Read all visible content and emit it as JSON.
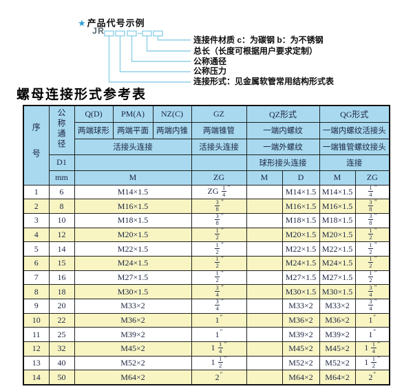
{
  "diagram": {
    "star": "★",
    "title": "产品代号示例",
    "code_prefix": "JR",
    "labels": [
      "连接件材质  c：为碳钢  b：为不锈钢",
      "总长（长度可根据用户要求定制）",
      "公称通径",
      "公称压力",
      "连接形式：见金属软管常用结构形式表"
    ]
  },
  "table": {
    "title": "螺母连接形式参考表",
    "header": {
      "seq": "序号",
      "dn": "公称通径",
      "groups": {
        "q": "Q(D)",
        "pm": "PM(A)",
        "nz": "NZ(C)",
        "gz": "GZ",
        "qz": "QZ形式",
        "qg": "QG形式"
      },
      "row2": {
        "q": "两端球形",
        "pm": "两端平面",
        "nz": "两端内锥",
        "gz": "两端锥管",
        "qz": "一端内螺纹",
        "qg": "一端内螺纹活接头"
      },
      "row3": {
        "qpmnz": "活接头连接",
        "gz": "活接头连接",
        "qz": "一端外螺纹",
        "qg": "一端锥管螺纹接头"
      },
      "row4": {
        "d1": "D1",
        "qz": "球形接头连接",
        "qg": "连接"
      },
      "row5": {
        "mm": "mm",
        "m1": "M",
        "zg1": "ZG",
        "m2": "M",
        "d": "D",
        "m3": "M",
        "zg2": "ZG"
      }
    },
    "rows": [
      [
        "1",
        "6",
        "M14×1.5",
        "ZG 1/4″",
        "",
        "M14×1.5",
        "M14×1.5",
        "1/4″"
      ],
      [
        "2",
        "8",
        "M16×1.5",
        "3/8″",
        "",
        "M16×1.5",
        "M16×1.5",
        "3/8″"
      ],
      [
        "3",
        "10",
        "M18×1.5",
        "3/8″",
        "",
        "M18×1.5",
        "M18×1.5",
        "3/8″"
      ],
      [
        "4",
        "12",
        "M20×1.5",
        "1/2″",
        "",
        "M20×1.5",
        "M20×1.5",
        "1/2″"
      ],
      [
        "5",
        "14",
        "M22×1.5",
        "1/2″",
        "",
        "M22×1.5",
        "M22×1.5",
        "1/2″"
      ],
      [
        "6",
        "15",
        "M24×1.5",
        "1/2″",
        "",
        "M24×1.5",
        "M24×1.5",
        "1/2″"
      ],
      [
        "7",
        "16",
        "M27×1.5",
        "1/2″",
        "",
        "M27×1.5",
        "M27×1.5",
        "1/2″"
      ],
      [
        "8",
        "18",
        "M30×1.5",
        "3/4″",
        "",
        "M30×1.5",
        "M30×1.5",
        "3/4″"
      ],
      [
        "9",
        "20",
        "M33×2",
        "3/4″",
        "",
        "M33×2",
        "M33×2",
        "3/4″"
      ],
      [
        "10",
        "22",
        "M36×2",
        "1″",
        "",
        "M36×2",
        "M36×2",
        "1″"
      ],
      [
        "11",
        "25",
        "M39×2",
        "1″",
        "",
        "M39×2",
        "M39×2",
        "1″"
      ],
      [
        "12",
        "32",
        "M45×2",
        "1 1/4″",
        "",
        "M45×2",
        "M45×2",
        "1 1/4″"
      ],
      [
        "13",
        "40",
        "M52×2",
        "1 1/2″",
        "",
        "M52×2",
        "M52×2",
        "1 1/2″"
      ],
      [
        "14",
        "50",
        "M64×2",
        "2″",
        "",
        "M64×2",
        "M64×2",
        "2″"
      ]
    ]
  },
  "colors": {
    "header_bg": "#a8d9ef",
    "row_alt_bg": "#f8f5c3",
    "diagram_line": "#8ecfe6",
    "star_blue": "#2d9fd6",
    "table_text": "#1b2440",
    "border": "#1f1f1f"
  }
}
